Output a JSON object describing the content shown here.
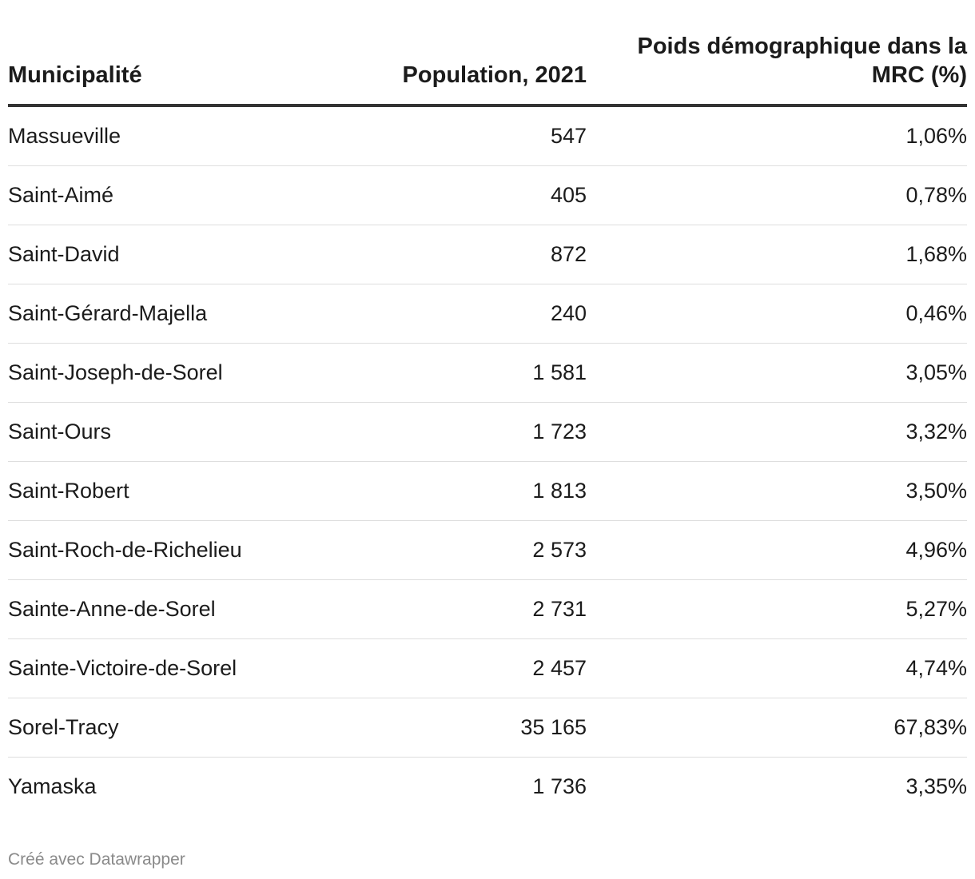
{
  "chart_data": {
    "type": "table",
    "columns": [
      "Municipalité",
      "Population, 2021",
      "Poids démographique dans la MRC (%)"
    ],
    "rows": [
      {
        "municipalite": "Massueville",
        "population": "547",
        "poids": "1,06%"
      },
      {
        "municipalite": "Saint-Aimé",
        "population": "405",
        "poids": "0,78%"
      },
      {
        "municipalite": "Saint-David",
        "population": "872",
        "poids": "1,68%"
      },
      {
        "municipalite": "Saint-Gérard-Majella",
        "population": "240",
        "poids": "0,46%"
      },
      {
        "municipalite": "Saint-Joseph-de-Sorel",
        "population": "1 581",
        "poids": "3,05%"
      },
      {
        "municipalite": "Saint-Ours",
        "population": "1 723",
        "poids": "3,32%"
      },
      {
        "municipalite": "Saint-Robert",
        "population": "1 813",
        "poids": "3,50%"
      },
      {
        "municipalite": "Saint-Roch-de-Richelieu",
        "population": "2 573",
        "poids": "4,96%"
      },
      {
        "municipalite": "Sainte-Anne-de-Sorel",
        "population": "2 731",
        "poids": "5,27%"
      },
      {
        "municipalite": "Sainte-Victoire-de-Sorel",
        "population": "2 457",
        "poids": "4,74%"
      },
      {
        "municipalite": "Sorel-Tracy",
        "population": "35 165",
        "poids": "67,83%"
      },
      {
        "municipalite": "Yamaska",
        "population": "1 736",
        "poids": "3,35%"
      }
    ]
  },
  "footer": {
    "credit": "Créé avec Datawrapper"
  }
}
